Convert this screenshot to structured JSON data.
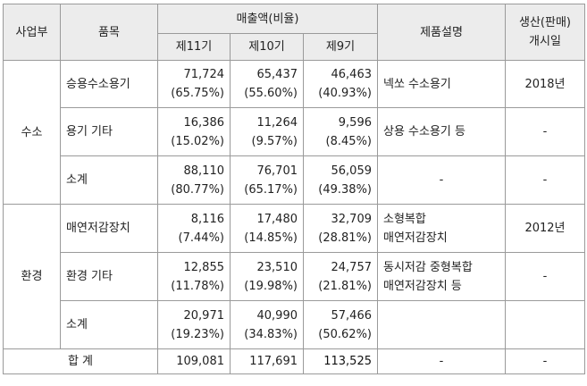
{
  "header": {
    "division": "사업부",
    "item": "품목",
    "sales": "매출액(비율)",
    "period_11": "제11기",
    "period_10": "제10기",
    "period_9": "제9기",
    "description": "제품설명",
    "start_line1": "생산(판매)",
    "start_line2": "개시일"
  },
  "rows": [
    {
      "division": "수소",
      "item": "승용수소용기",
      "p11": "71,724",
      "p11_ratio": "(65.75%)",
      "p10": "65,437",
      "p10_ratio": "(55.60%)",
      "p9": "46,463",
      "p9_ratio": "(40.93%)",
      "desc_line1": "넥쏘 수소용기",
      "desc_line2": "",
      "start": "2018년"
    },
    {
      "item": "용기 기타",
      "p11": "16,386",
      "p11_ratio": "(15.02%)",
      "p10": "11,264",
      "p10_ratio": "(9.57%)",
      "p9": "9,596",
      "p9_ratio": "(8.45%)",
      "desc_line1": "상용 수소용기 등",
      "desc_line2": "",
      "start": "-"
    },
    {
      "item": "소계",
      "p11": "88,110",
      "p11_ratio": "(80.77%)",
      "p10": "76,701",
      "p10_ratio": "(65.17%)",
      "p9": "56,059",
      "p9_ratio": "(49.38%)",
      "desc_line1": "-",
      "desc_line2": "",
      "start": "-"
    },
    {
      "division": "환경",
      "item": "매연저감장치",
      "p11": "8,116",
      "p11_ratio": "(7.44%)",
      "p10": "17,480",
      "p10_ratio": "(14.85%)",
      "p9": "32,709",
      "p9_ratio": "(28.81%)",
      "desc_line1": "소형복합",
      "desc_line2": "매연저감장치",
      "start": "2012년"
    },
    {
      "item": "환경 기타",
      "p11": "12,855",
      "p11_ratio": "(11.78%)",
      "p10": "23,510",
      "p10_ratio": "(19.98%)",
      "p9": "24,757",
      "p9_ratio": "(21.81%)",
      "desc_line1": "동시저감 중형복합",
      "desc_line2": "매연저감장치 등",
      "start": "-"
    },
    {
      "item": "소계",
      "p11": "20,971",
      "p11_ratio": "(19.23%)",
      "p10": "40,990",
      "p10_ratio": "(34.83%)",
      "p9": "57,466",
      "p9_ratio": "(50.62%)",
      "desc_line1": "",
      "desc_line2": "",
      "start": ""
    }
  ],
  "total": {
    "label": "합 계",
    "p11": "109,081",
    "p10": "117,691",
    "p9": "113,525",
    "desc": "-",
    "start": "-"
  }
}
